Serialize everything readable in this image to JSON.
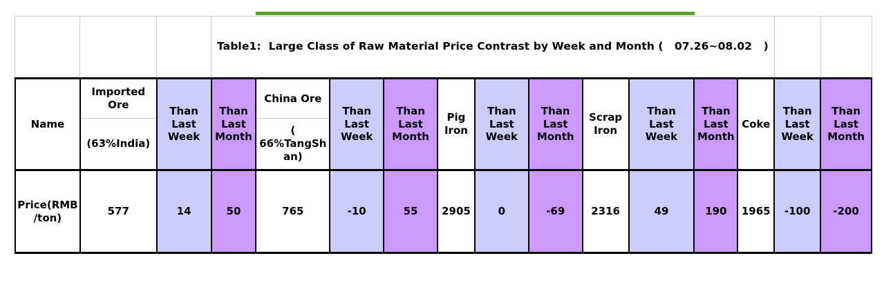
{
  "chart_data": {
    "type": "table",
    "title": "Table1: Large Class of Raw Material Price Contrast by Week and Month ( 07.26~08.02 )",
    "row_label": "Price(RMB/ton)",
    "columns": [
      "Name",
      "Imported Ore (63%India)",
      "Than Last Week",
      "Than Last Month",
      "China Ore (66%TangShan)",
      "Than Last Week",
      "Than Last Month",
      "Pig Iron",
      "Than Last Week",
      "Than Last Month",
      "Scrap Iron",
      "Than Last Week",
      "Than Last Month",
      "Coke",
      "Than Last Week",
      "Than Last Month"
    ],
    "materials": [
      {
        "name": "Imported Ore (63%India)",
        "price": 577,
        "than_last_week": 14,
        "than_last_month": 50
      },
      {
        "name": "China Ore (66%TangShan)",
        "price": 765,
        "than_last_week": -10,
        "than_last_month": 55
      },
      {
        "name": "Pig Iron",
        "price": 2905,
        "than_last_week": 0,
        "than_last_month": -69
      },
      {
        "name": "Scrap Iron",
        "price": 2316,
        "than_last_week": 49,
        "than_last_month": 190
      },
      {
        "name": "Coke",
        "price": 1965,
        "than_last_week": -100,
        "than_last_month": -200
      }
    ]
  },
  "title": "Table1:  Large Class of Raw Material Price Contrast by Week and Month (   07.26~08.02   )",
  "header": {
    "name": "Name",
    "imported_ore": "Imported\nOre",
    "imported_ore_sub": "(63%India)",
    "china_ore": "China Ore",
    "china_ore_sub": "(\n66%TangSh\nan)",
    "pig_iron": "Pig\nIron",
    "scrap_iron": "Scrap\nIron",
    "coke": "Coke",
    "than_last_week": "Than\nLast\nWeek",
    "than_last_month": "Than\nLast\nMonth"
  },
  "row": {
    "label": "Price(RMB\n/ton)",
    "values": [
      "577",
      "14",
      "50",
      "765",
      "-10",
      "55",
      "2905",
      "0",
      "-69",
      "2316",
      "49",
      "190",
      "1965",
      "-100",
      "-200"
    ]
  },
  "colors": {
    "week_bg": "#ccccff",
    "month_bg": "#cc99ff",
    "green_line": "#56a22b",
    "grid_gray": "#c9c9c9",
    "border_black": "#000000"
  }
}
